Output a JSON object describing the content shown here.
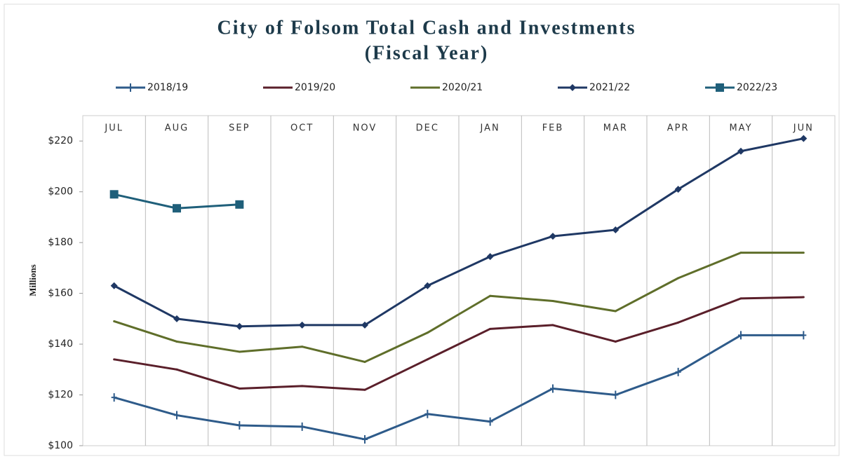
{
  "chart_data": {
    "type": "line",
    "title": "City of Folsom Total Cash and Investments",
    "subtitle": "(Fiscal Year)",
    "y_label": "Millions",
    "categories": [
      "JUL",
      "AUG",
      "SEP",
      "OCT",
      "NOV",
      "DEC",
      "JAN",
      "FEB",
      "MAR",
      "APR",
      "MAY",
      "JUN"
    ],
    "series": [
      {
        "name": "2018/19",
        "color": "#2e5b8a",
        "marker": "plus",
        "values": [
          119,
          112,
          108,
          107.5,
          102.5,
          112.5,
          109.5,
          122.5,
          120,
          129,
          143.5,
          143.5
        ]
      },
      {
        "name": "2019/20",
        "color": "#5a1f2a",
        "marker": "none",
        "values": [
          134,
          130,
          122.5,
          123.5,
          122,
          134,
          146,
          147.5,
          141,
          148.5,
          158,
          158.5
        ]
      },
      {
        "name": "2020/21",
        "color": "#5f6e2a",
        "marker": "none",
        "values": [
          149,
          141,
          137,
          139,
          133,
          144.5,
          159,
          157,
          153,
          166,
          176,
          176
        ]
      },
      {
        "name": "2021/22",
        "color": "#1f3864",
        "marker": "diamond",
        "values": [
          163,
          150,
          147,
          147.5,
          147.5,
          163,
          174.5,
          182.5,
          185,
          201,
          216,
          221
        ]
      },
      {
        "name": "2022/23",
        "color": "#1f5f7a",
        "marker": "square",
        "values": [
          199,
          193.5,
          195,
          null,
          null,
          null,
          null,
          null,
          null,
          null,
          null,
          null
        ]
      }
    ],
    "ylim": [
      100,
      230
    ],
    "yticks": [
      {
        "value": 100,
        "label": "$100"
      },
      {
        "value": 120,
        "label": "$120"
      },
      {
        "value": 140,
        "label": "$140"
      },
      {
        "value": 160,
        "label": "$160"
      },
      {
        "value": 180,
        "label": "$180"
      },
      {
        "value": 200,
        "label": "$200"
      },
      {
        "value": 220,
        "label": "$220"
      }
    ],
    "grid": "x"
  }
}
